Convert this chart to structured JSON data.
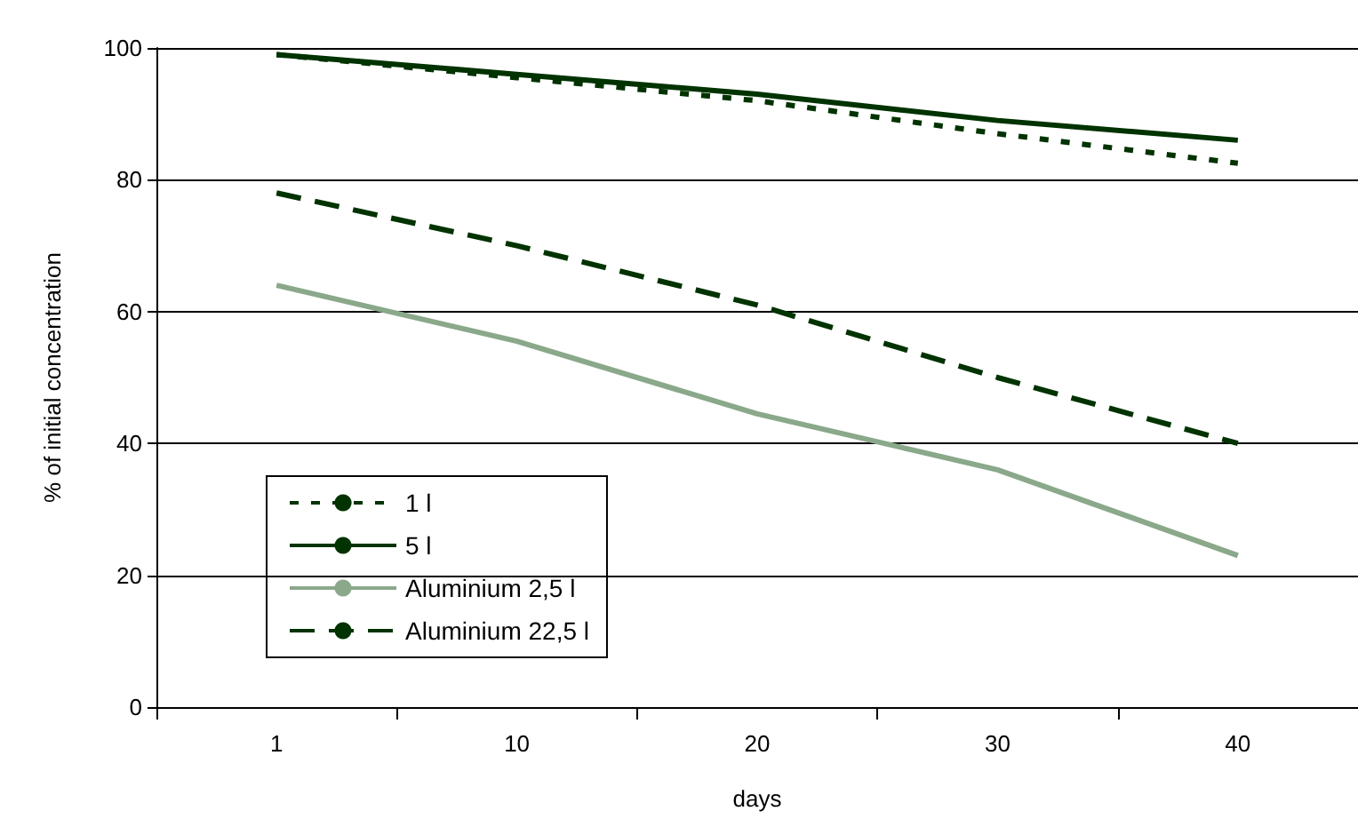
{
  "chart_data": {
    "type": "line",
    "xlabel": "days",
    "ylabel": "% of initial concentration",
    "categories": [
      "1",
      "10",
      "20",
      "30",
      "40"
    ],
    "series": [
      {
        "name": "1 l",
        "color": "#003300",
        "line_style": "dotted",
        "values": [
          99,
          95.5,
          92,
          87,
          82.5
        ]
      },
      {
        "name": "5 l",
        "color": "#003300",
        "line_style": "solid",
        "values": [
          99,
          96,
          93,
          89,
          86
        ]
      },
      {
        "name": "Aluminium 2,5 l",
        "color": "#8aa88a",
        "line_style": "solid",
        "values": [
          64,
          55.5,
          44.5,
          36,
          23
        ]
      },
      {
        "name": "Aluminium 22,5 l",
        "color": "#003300",
        "line_style": "dashed",
        "values": [
          78,
          70,
          61,
          50,
          40
        ]
      }
    ],
    "ylim": [
      0,
      100
    ],
    "yticks": [
      0,
      20,
      40,
      60,
      80,
      100
    ],
    "grid": "y",
    "legend": "bottom left",
    "marker": "none"
  }
}
